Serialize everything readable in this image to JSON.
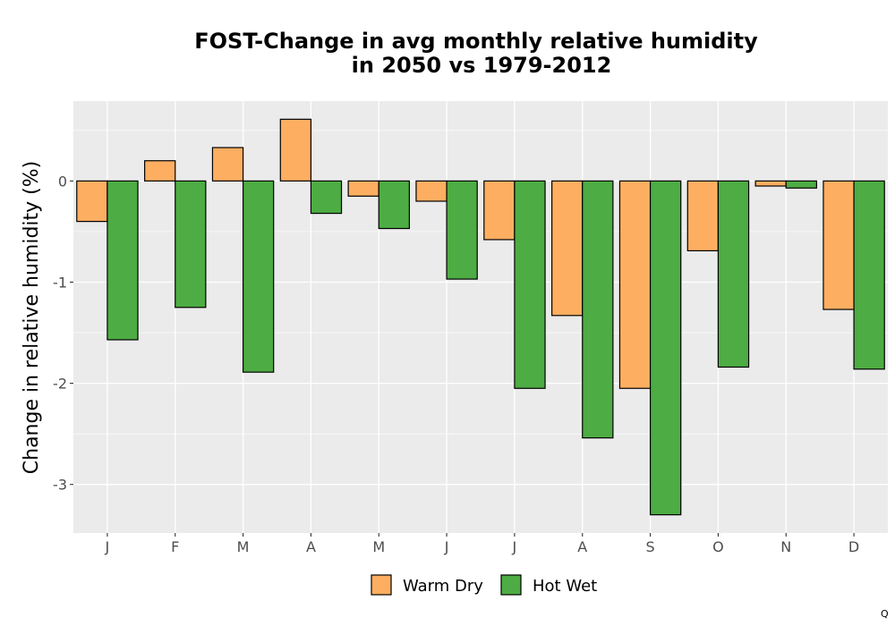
{
  "chart_data": {
    "type": "bar",
    "title_lines": [
      "FOST-Change in avg monthly relative humidity",
      "in 2050 vs 1979-2012"
    ],
    "xlabel": "",
    "ylabel": "Change in relative humidity (%)",
    "categories": [
      "J",
      "F",
      "M",
      "A",
      "M",
      "J",
      "J",
      "A",
      "S",
      "O",
      "N",
      "D"
    ],
    "series": [
      {
        "name": "Warm Dry",
        "color": "#FDAE61",
        "values": [
          -0.4,
          0.2,
          0.33,
          0.61,
          -0.15,
          -0.2,
          -0.58,
          -1.33,
          -2.05,
          -0.69,
          -0.05,
          -1.27
        ]
      },
      {
        "name": "Hot Wet",
        "color": "#4DAC43",
        "values": [
          -1.57,
          -1.25,
          -1.89,
          -0.32,
          -0.47,
          -0.97,
          -2.05,
          -2.54,
          -3.3,
          -1.84,
          -0.07,
          -1.86
        ]
      }
    ],
    "ylim": [
      -3.48,
      0.79
    ],
    "yticks": [
      0,
      -1,
      -2,
      -3
    ],
    "ytick_labels": [
      "0",
      "-1",
      "-2",
      "-3"
    ],
    "grid": true,
    "panel_background": "#EBEBEB",
    "gridline_color": "#FFFFFF",
    "bar_outline_color": "#000000",
    "legend_position": "bottom"
  },
  "corner_mark": "Q"
}
